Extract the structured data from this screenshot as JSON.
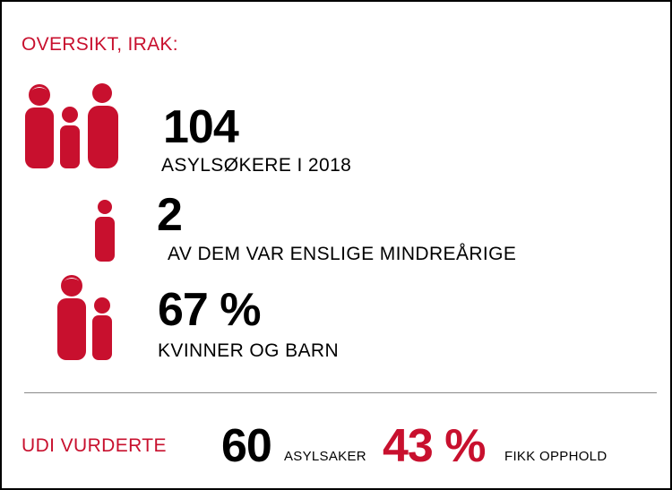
{
  "header": {
    "title": "OVERSIKT, IRAK:"
  },
  "stats": [
    {
      "value": "104",
      "label": "ASYLSØKERE I 2018",
      "icon": "family-group-icon"
    },
    {
      "value": "2",
      "label": "AV DEM VAR ENSLIGE MINDREÅRIGE",
      "icon": "child-icon"
    },
    {
      "value": "67 %",
      "label": "KVINNER OG BARN",
      "icon": "woman-child-icon"
    }
  ],
  "footer": {
    "label": "UDI VURDERTE",
    "cases_value": "60",
    "cases_label": "ASYLSAKER",
    "granted_value": "43 %",
    "granted_label": "FIKK OPPHOLD"
  },
  "colors": {
    "accent": "#c8102e",
    "text": "#000000",
    "divider": "#8a8a8a"
  }
}
